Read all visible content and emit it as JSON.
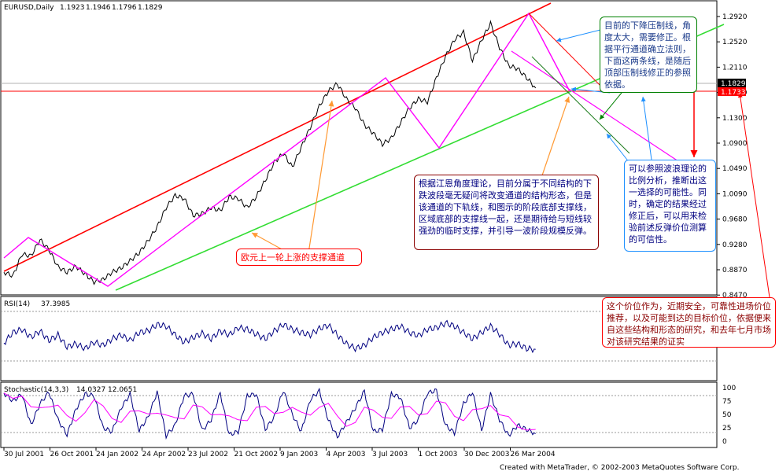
{
  "chart_data": [
    {
      "type": "line",
      "title": "EURUSD,Daily",
      "ohlc": [
        "1.1923",
        "1.1946",
        "1.1796",
        "1.1829"
      ],
      "price_tag_current": "1.1829",
      "price_tag_red": "1.1733",
      "ylim": [
        0.847,
        1.3
      ],
      "y_ticks": [
        "1.2920",
        "1.2520",
        "1.2110",
        "1.1700",
        "1.1300",
        "1.0900",
        "1.0490",
        "1.0090",
        "0.9680",
        "0.9280",
        "0.8870",
        "0.8470"
      ],
      "x_ticks": [
        "30 Jul 2001",
        "26 Oct 2001",
        "24 Jan 2002",
        "24 Apr 2002",
        "23 Jul 2002",
        "21 Oct 2002",
        "9 Jan 2003",
        "4 Apr 2003",
        "3 Jul 2003",
        "1 Oct 2003",
        "30 Dec 2003",
        "26 Mar 2004"
      ],
      "x_index": [
        0,
        1,
        2,
        3,
        4,
        5,
        6,
        7,
        8,
        9,
        10,
        11
      ],
      "series": [
        {
          "values": [
            0.878,
            0.872,
            0.908,
            0.905,
            0.932,
            0.915,
            0.887,
            0.878,
            0.888,
            0.875,
            0.862,
            0.866,
            0.878,
            0.885,
            0.897,
            0.91,
            0.93,
            0.953,
            0.985,
            1.005,
            1.0,
            0.972,
            0.975,
            0.985,
            0.98,
            1.003,
            1.0,
            0.985,
            1.003,
            1.03,
            1.06,
            1.075,
            1.052,
            1.085,
            1.118,
            1.153,
            1.178,
            1.19,
            1.165,
            1.15,
            1.122,
            1.108,
            1.09,
            1.1,
            1.125,
            1.15,
            1.165,
            1.16,
            1.2,
            1.235,
            1.263,
            1.275,
            1.228,
            1.262,
            1.29,
            1.25,
            1.22,
            1.215,
            1.2,
            1.183
          ],
          "x_start": 0,
          "x_end": 11.55
        }
      ]
    },
    {
      "type": "line",
      "title": "RSI(14)",
      "value_label": "37.3985",
      "ylim": [
        0,
        100
      ],
      "series": [
        {
          "values": [
            45,
            58,
            62,
            52,
            60,
            48,
            55,
            40,
            44,
            38,
            46,
            42,
            50,
            55,
            48,
            58,
            60,
            68,
            66,
            55,
            46,
            52,
            57,
            50,
            60,
            55,
            64,
            62,
            56,
            50,
            60,
            68,
            62,
            58,
            55,
            63,
            67,
            55,
            44,
            38,
            42,
            52,
            58,
            62,
            66,
            58,
            54,
            62,
            64,
            70,
            66,
            58,
            50,
            58,
            66,
            56,
            42,
            44,
            38,
            37
          ],
          "x_start": 0,
          "x_end": 11.55
        }
      ]
    },
    {
      "type": "line",
      "title": "Stochastic(14,3,3)",
      "value_labels": [
        "14.0327",
        "12.0651"
      ],
      "ylim": [
        0,
        100
      ],
      "y_ticks": [
        "100",
        "75",
        "50",
        "25",
        "0"
      ],
      "series": [
        {
          "values": [
            90,
            75,
            88,
            30,
            70,
            92,
            40,
            12,
            60,
            88,
            85,
            25,
            18,
            62,
            88,
            20,
            45,
            92,
            10,
            30,
            85,
            88,
            20,
            40,
            90,
            12,
            18,
            85,
            88,
            22,
            45,
            95,
            50,
            18,
            78,
            94,
            40,
            8,
            35,
            62,
            94,
            18,
            22,
            88,
            82,
            25,
            40,
            90,
            95,
            30,
            15,
            70,
            92,
            20,
            88,
            40,
            10,
            30,
            22,
            14
          ],
          "x_start": 0,
          "x_end": 11.55
        }
      ]
    }
  ],
  "annotations": {
    "top_right": "目前的下降压制线，角度太大，需要修正。根据平行通道确立法则，下面这两条线，是随后顶部压制线修正的参照依据。",
    "center": "根据江恩角度理论，目前分属于不同结构的下跌波段毫无疑问将改变通道的结构形态，但是该通道的下轨线，和图示的阶段底部支撑线，区域底部的支撑线一起，还是期待给与短线较强劲的临时支撑，并引导一波阶段规模反弹。",
    "right_mid": "可以参照波浪理论的比例分析，推断出这一选择的可能性。同时，确定的结果经过修正后，可以用来检验前述反弹价位测算的可信性。",
    "bottom_left": "欧元上一轮上涨的支撑通道",
    "bottom_right": "这个价位作为，近期安全，可靠性进场价位推荐，以及可能到达的目标价位，依据便来自这些结构和形态的研究，和去年七月市场对该研究结果的证实"
  },
  "credit": "Created with MetaTrader, © 2002-2003 MetaQuotes Software Corp.",
  "colors": {
    "price": "#000000",
    "indicator": "#000080",
    "signal": "#ff00ff",
    "channel_top": "#ff0000",
    "channel_bottom": "#00cc00",
    "guide_arrows": "#ff9933",
    "blue_note": "#1e90ff",
    "green_note": "#008000",
    "darkred_note": "#8b0000",
    "red_note": "#ff0000"
  }
}
